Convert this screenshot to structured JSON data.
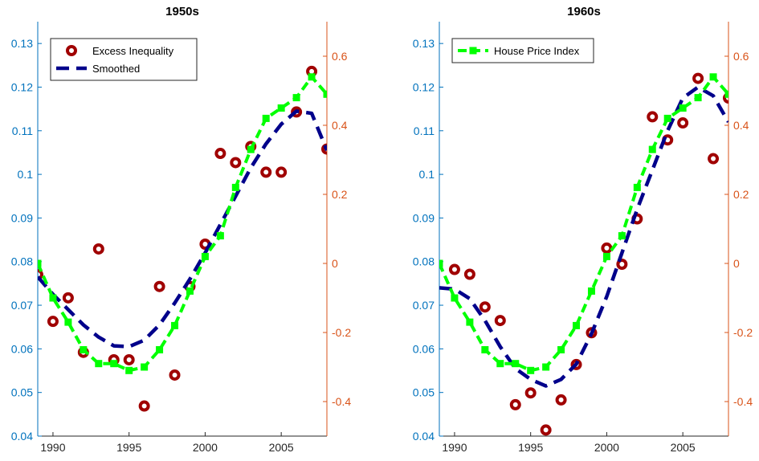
{
  "colors": {
    "left_axis": "#0072BD",
    "right_axis": "#D95319",
    "scatter": "#A00000",
    "smoothed": "#00008B",
    "hpi": "#00FF00",
    "frame": "#262626"
  },
  "chart_data": [
    {
      "type": "line",
      "title": "1950s",
      "x_ticks": [
        1990,
        1995,
        2000,
        2005
      ],
      "xlim": [
        1989,
        2008
      ],
      "y_left_lim": [
        0.04,
        0.135
      ],
      "y_left_ticks": [
        "0.04",
        "0.05",
        "0.06",
        "0.07",
        "0.08",
        "0.09",
        "0.1",
        "0.11",
        "0.12",
        "0.13"
      ],
      "y_right_lim": [
        -0.5,
        0.7
      ],
      "y_right_ticks": [
        "-0.4",
        "-0.2",
        "0",
        "0.2",
        "0.4",
        "0.6"
      ],
      "legend": [
        "Excess Inequality",
        "Smoothed"
      ],
      "legend_position": "top-left",
      "series": [
        {
          "name": "Excess Inequality",
          "style": "markers",
          "axis": "left",
          "x": [
            1989,
            1990,
            1991,
            1992,
            1993,
            1994,
            1995,
            1996,
            1997,
            1998,
            1999,
            2000,
            2001,
            2002,
            2003,
            2004,
            2005,
            2006,
            2007,
            2008
          ],
          "y": [
            0.077,
            0.0663,
            0.0717,
            0.0592,
            0.0829,
            0.0575,
            0.0575,
            0.0469,
            0.0743,
            0.054,
            0.0743,
            0.084,
            0.1048,
            0.1027,
            0.1064,
            0.1005,
            0.1005,
            0.1143,
            0.1236,
            0.1058
          ]
        },
        {
          "name": "Smoothed",
          "style": "dashed",
          "axis": "left",
          "x": [
            1989,
            1990,
            1991,
            1992,
            1993,
            1994,
            1995,
            1996,
            1997,
            1998,
            1999,
            2000,
            2001,
            2002,
            2003,
            2004,
            2005,
            2006,
            2007,
            2008
          ],
          "y": [
            0.0765,
            0.0725,
            0.069,
            0.0655,
            0.0627,
            0.0607,
            0.0605,
            0.062,
            0.0655,
            0.0705,
            0.076,
            0.082,
            0.0885,
            0.095,
            0.1015,
            0.107,
            0.1115,
            0.1145,
            0.114,
            0.1055
          ]
        },
        {
          "name": "House Price Index",
          "style": "dashed-square",
          "axis": "right",
          "x": [
            1989,
            1990,
            1991,
            1992,
            1993,
            1994,
            1995,
            1996,
            1997,
            1998,
            1999,
            2000,
            2001,
            2002,
            2003,
            2004,
            2005,
            2006,
            2007,
            2008
          ],
          "y": [
            0.0,
            -0.1,
            -0.17,
            -0.25,
            -0.29,
            -0.29,
            -0.31,
            -0.3,
            -0.25,
            -0.18,
            -0.08,
            0.02,
            0.08,
            0.22,
            0.33,
            0.42,
            0.45,
            0.48,
            0.54,
            0.49
          ]
        }
      ]
    },
    {
      "type": "line",
      "title": "1960s",
      "x_ticks": [
        1990,
        1995,
        2000,
        2005
      ],
      "xlim": [
        1989,
        2008
      ],
      "y_left_lim": [
        0.04,
        0.135
      ],
      "y_left_ticks": [
        "0.04",
        "0.05",
        "0.06",
        "0.07",
        "0.08",
        "0.09",
        "0.1",
        "0.11",
        "0.12",
        "0.13"
      ],
      "y_right_lim": [
        -0.5,
        0.7
      ],
      "y_right_ticks": [
        "-0.4",
        "-0.2",
        "0",
        "0.2",
        "0.4",
        "0.6"
      ],
      "legend": [
        "House Price Index"
      ],
      "legend_position": "top-left",
      "series": [
        {
          "name": "Excess Inequality",
          "style": "markers",
          "axis": "left",
          "x": [
            1990,
            1991,
            1992,
            1993,
            1994,
            1995,
            1996,
            1997,
            1998,
            1999,
            2000,
            2001,
            2002,
            2003,
            2004,
            2005,
            2006,
            2007,
            2008
          ],
          "y": [
            0.0782,
            0.0771,
            0.0696,
            0.0665,
            0.0472,
            0.0499,
            0.0414,
            0.0483,
            0.0564,
            0.0637,
            0.0831,
            0.0794,
            0.0898,
            0.1132,
            0.1079,
            0.1118,
            0.122,
            0.1036,
            0.1175
          ]
        },
        {
          "name": "Smoothed",
          "style": "dashed",
          "axis": "left",
          "x": [
            1989,
            1990,
            1991,
            1992,
            1993,
            1994,
            1995,
            1996,
            1997,
            1998,
            1999,
            2000,
            2001,
            2002,
            2003,
            2004,
            2005,
            2006,
            2007,
            2008
          ],
          "y": [
            0.074,
            0.0737,
            0.0715,
            0.0665,
            0.0605,
            0.0555,
            0.053,
            0.0515,
            0.053,
            0.0565,
            0.0635,
            0.072,
            0.082,
            0.092,
            0.101,
            0.11,
            0.1175,
            0.12,
            0.118,
            0.112
          ]
        },
        {
          "name": "House Price Index",
          "style": "dashed-square",
          "axis": "right",
          "x": [
            1989,
            1990,
            1991,
            1992,
            1993,
            1994,
            1995,
            1996,
            1997,
            1998,
            1999,
            2000,
            2001,
            2002,
            2003,
            2004,
            2005,
            2006,
            2007,
            2008
          ],
          "y": [
            0.0,
            -0.1,
            -0.17,
            -0.25,
            -0.29,
            -0.29,
            -0.31,
            -0.3,
            -0.25,
            -0.18,
            -0.08,
            0.02,
            0.08,
            0.22,
            0.33,
            0.42,
            0.45,
            0.48,
            0.54,
            0.49
          ]
        }
      ]
    }
  ]
}
